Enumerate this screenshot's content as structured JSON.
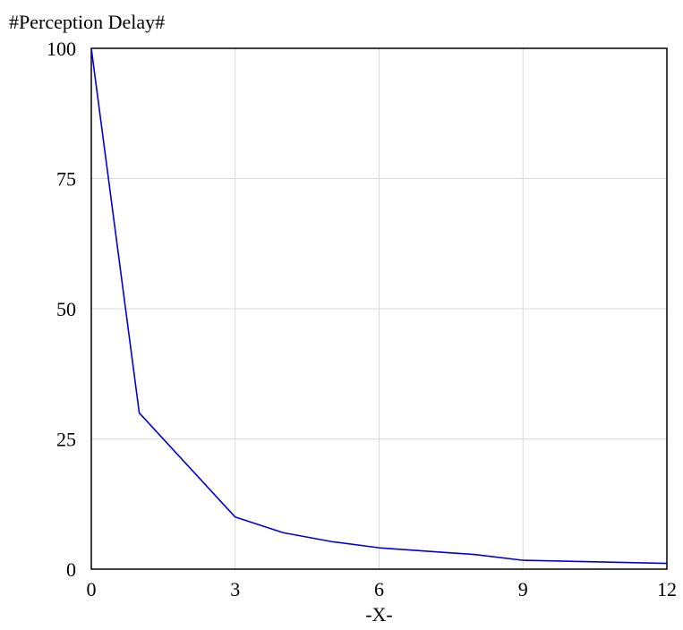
{
  "chart_data": {
    "type": "line",
    "title": "#Perception Delay#",
    "xlabel": "-X-",
    "ylabel": "",
    "xlim": [
      0,
      12
    ],
    "ylim": [
      0,
      100
    ],
    "xticks": [
      0,
      3,
      6,
      9,
      12
    ],
    "yticks": [
      0,
      25,
      50,
      75,
      100
    ],
    "grid": true,
    "colors": {
      "line": "#0000dd",
      "grid": "#d9d9d9",
      "frame": "#000000"
    },
    "series": [
      {
        "x": [
          0,
          1,
          3,
          4,
          5,
          6,
          8,
          9,
          12
        ],
        "y": [
          100,
          30,
          10,
          7,
          5.3,
          4.1,
          2.8,
          1.7,
          1.1
        ]
      }
    ]
  }
}
